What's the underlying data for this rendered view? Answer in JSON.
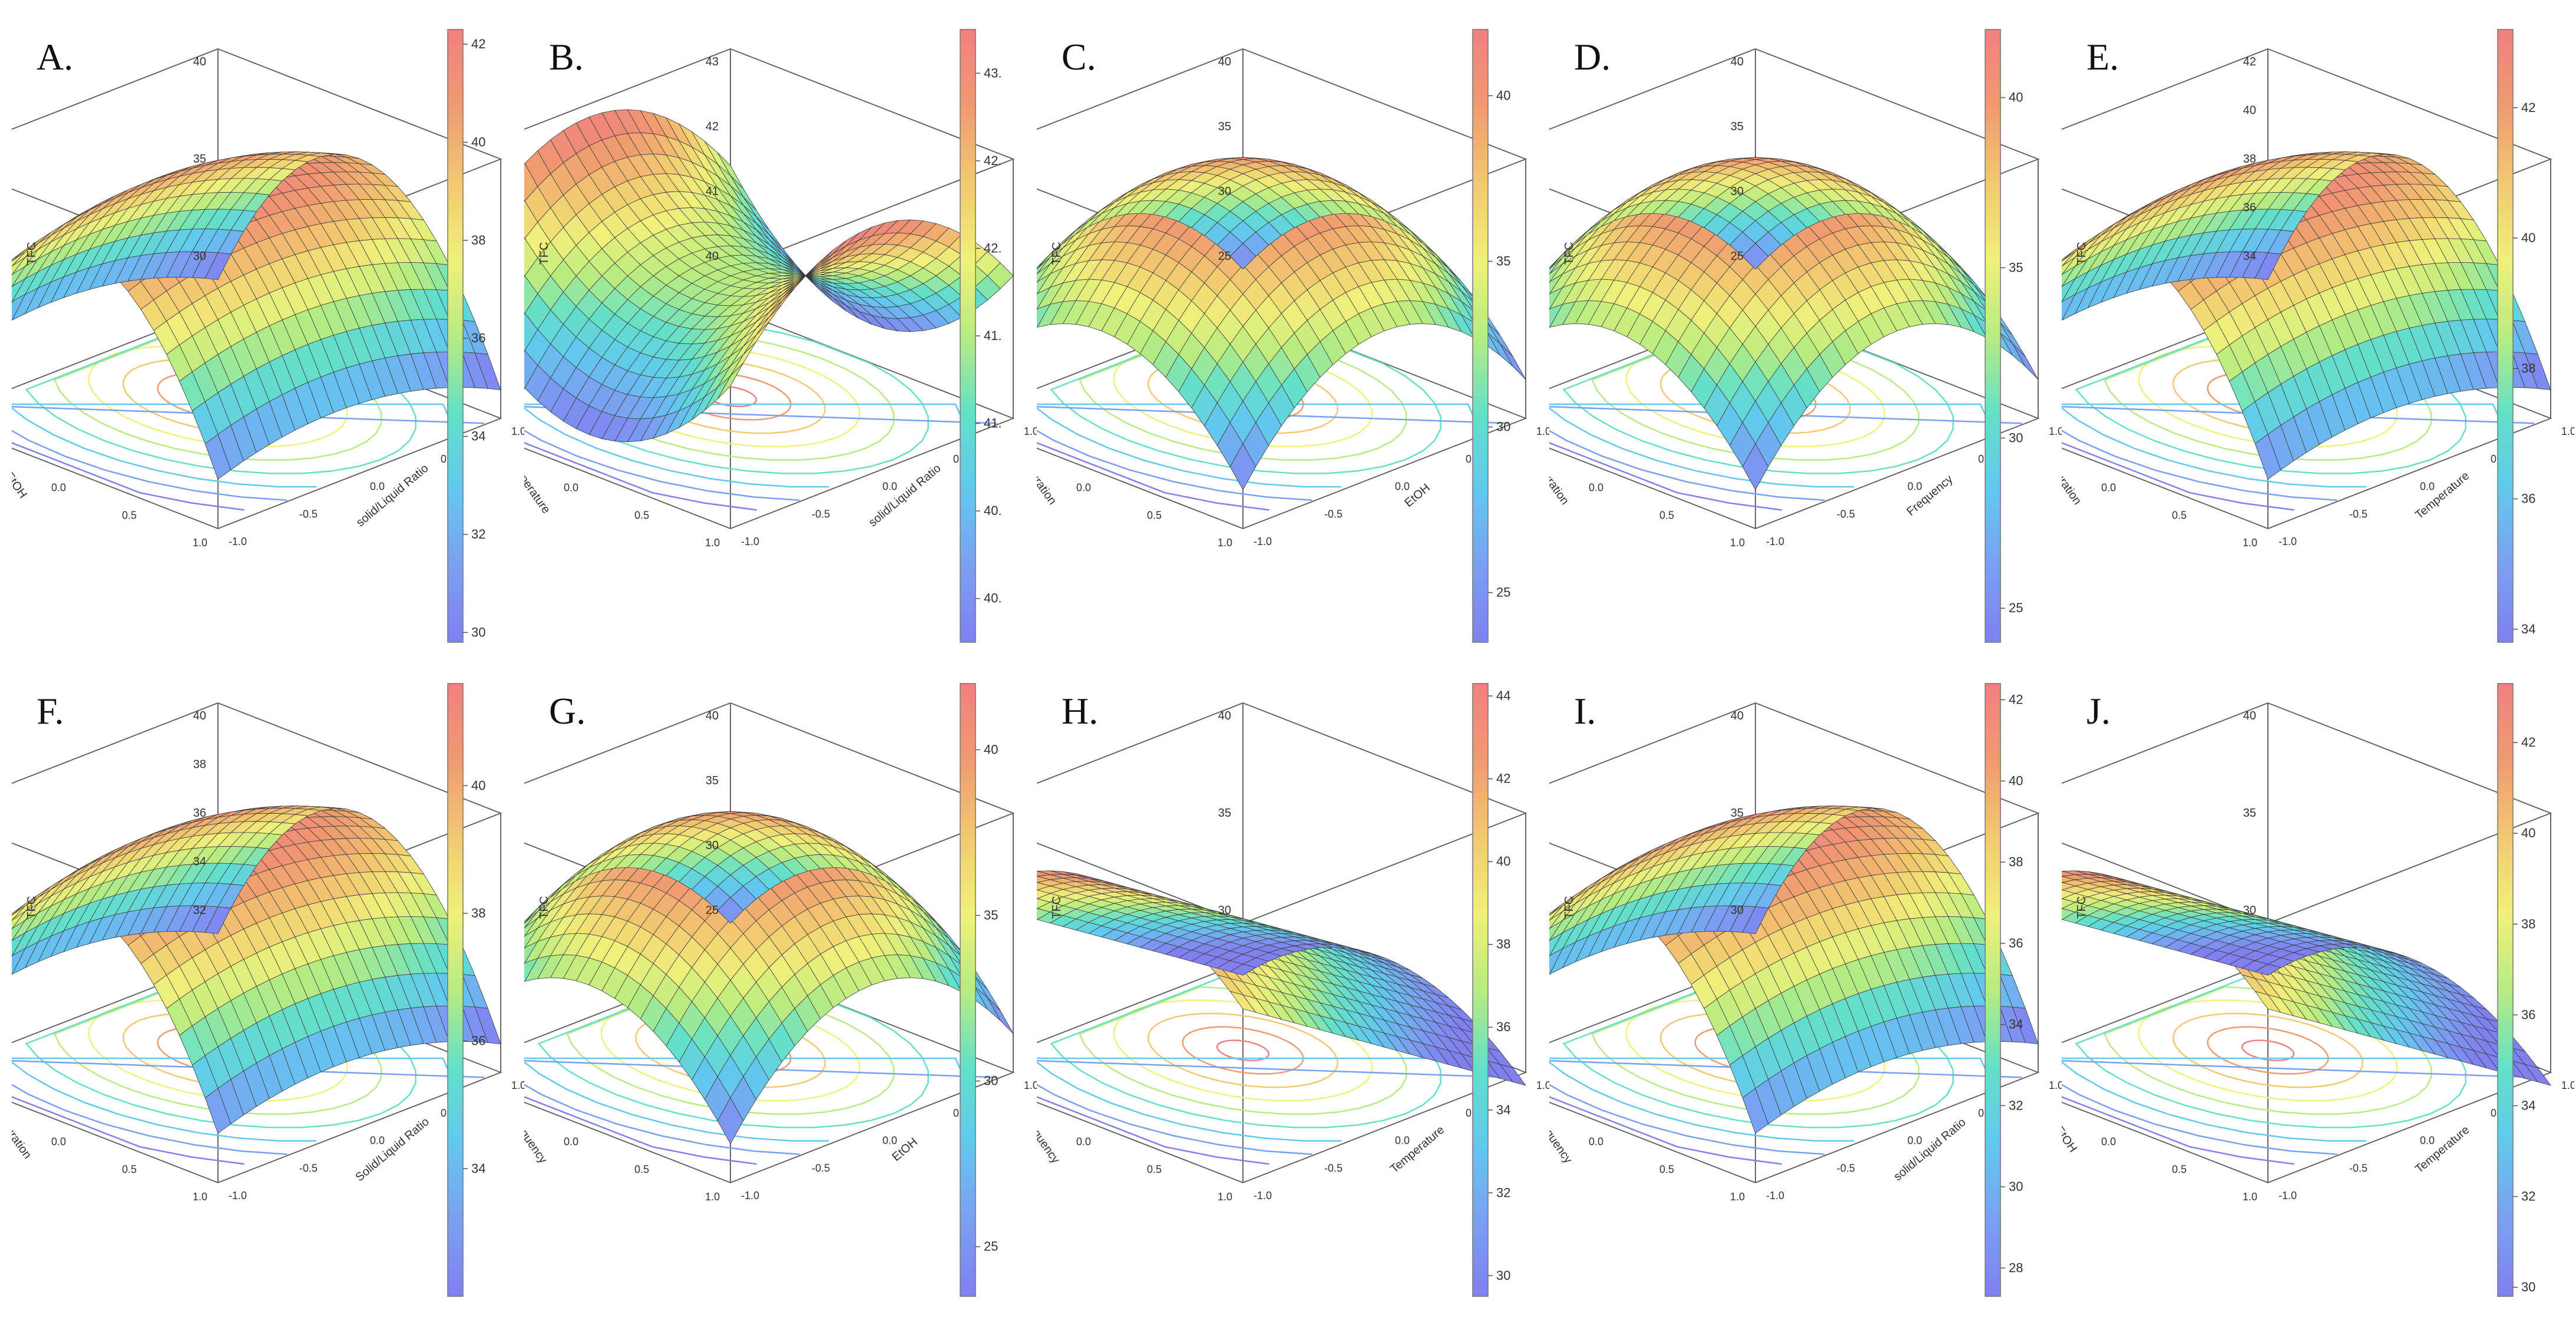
{
  "figure": {
    "colorbar_colors": [
      "#8080f0",
      "#7aa0f2",
      "#62c8ee",
      "#64e0c8",
      "#b8ec80",
      "#f0f07a",
      "#f2c870",
      "#f09a70",
      "#f08080"
    ],
    "panels": [
      {
        "id": "A",
        "letter": "A.",
        "zlabel": "TFC",
        "x1label": "EtOH",
        "x2label": "solid/Liquid Ratio",
        "z_ticks": [
          "30",
          "35",
          "40"
        ],
        "x_ticks": [
          "-1.0",
          "-0.5",
          "0.0",
          "0.5",
          "1.0"
        ],
        "colorbar_ticks": [
          "30",
          "32",
          "34",
          "36",
          "38",
          "40",
          "42"
        ],
        "colorbar_range": [
          29.8,
          42.3
        ],
        "surface": {
          "kind": "ridge",
          "base": 33,
          "amp": 9
        }
      },
      {
        "id": "B",
        "letter": "B.",
        "zlabel": "TFC",
        "x1label": "Temperature",
        "x2label": "solid/Liquid Ratio",
        "z_ticks": [
          "40",
          "41",
          "42",
          "43"
        ],
        "x_ticks": [
          "-1.0",
          "-0.5",
          "0.0",
          "0.5",
          "1.0"
        ],
        "colorbar_ticks": [
          "40.",
          "40.",
          "41.",
          "41.",
          "42.",
          "42.",
          "43."
        ],
        "colorbar_range": [
          39.8,
          43.1
        ],
        "surface": {
          "kind": "saddle",
          "base": 41.5,
          "amp": 1.4
        }
      },
      {
        "id": "C",
        "letter": "C.",
        "zlabel": "TFC",
        "x1label": "Duration",
        "x2label": "EtOH",
        "z_ticks": [
          "25",
          "30",
          "35",
          "40"
        ],
        "x_ticks": [
          "-1.0",
          "-0.5",
          "0.0",
          "0.5",
          "1.0"
        ],
        "colorbar_ticks": [
          "25",
          "30",
          "35",
          "40"
        ],
        "colorbar_range": [
          23.5,
          42
        ],
        "surface": {
          "kind": "dome",
          "base": 24,
          "amp": 18
        }
      },
      {
        "id": "D",
        "letter": "D.",
        "zlabel": "TFC",
        "x1label": "Duration",
        "x2label": "Frequency",
        "z_ticks": [
          "25",
          "30",
          "35",
          "40"
        ],
        "x_ticks": [
          "-1.0",
          "-0.5",
          "0.0",
          "0.5",
          "1.0"
        ],
        "colorbar_ticks": [
          "25",
          "30",
          "35",
          "40"
        ],
        "colorbar_range": [
          24,
          42
        ],
        "surface": {
          "kind": "dome",
          "base": 24,
          "amp": 18
        }
      },
      {
        "id": "E",
        "letter": "E.",
        "zlabel": "TFC",
        "x1label": "Duration",
        "x2label": "Temperature",
        "z_ticks": [
          "34",
          "36",
          "38",
          "40",
          "42"
        ],
        "x_ticks": [
          "-1.0",
          "-0.5",
          "0.0",
          "0.5",
          "1.0"
        ],
        "colorbar_ticks": [
          "34",
          "36",
          "38",
          "40",
          "42"
        ],
        "colorbar_range": [
          33.8,
          43.2
        ],
        "surface": {
          "kind": "ridge",
          "base": 34,
          "amp": 9
        }
      },
      {
        "id": "F",
        "letter": "F.",
        "zlabel": "TFC",
        "x1label": "Duration",
        "x2label": "Solid/Liquid Ratio",
        "z_ticks": [
          "32",
          "34",
          "36",
          "38",
          "40"
        ],
        "x_ticks": [
          "-1.0",
          "-0.5",
          "0.0",
          "0.5",
          "1.0"
        ],
        "colorbar_ticks": [
          "34",
          "36",
          "38",
          "40"
        ],
        "colorbar_range": [
          32,
          41.6
        ],
        "surface": {
          "kind": "ridge",
          "base": 32,
          "amp": 9.5
        }
      },
      {
        "id": "G",
        "letter": "G.",
        "zlabel": "TFC",
        "x1label": "Frequency",
        "x2label": "EtOH",
        "z_ticks": [
          "25",
          "30",
          "35",
          "40"
        ],
        "x_ticks": [
          "-1.0",
          "-0.5",
          "0.0",
          "0.5",
          "1.0"
        ],
        "colorbar_ticks": [
          "25",
          "30",
          "35",
          "40"
        ],
        "colorbar_range": [
          23.5,
          42
        ],
        "surface": {
          "kind": "dome",
          "base": 24,
          "amp": 18
        }
      },
      {
        "id": "H",
        "letter": "H.",
        "zlabel": "TFC",
        "x1label": "Frequency",
        "x2label": "Temperature",
        "z_ticks": [
          "30",
          "35",
          "40"
        ],
        "x_ticks": [
          "-1.0",
          "-0.5",
          "0.0",
          "0.5",
          "1.0"
        ],
        "colorbar_ticks": [
          "30",
          "32",
          "34",
          "36",
          "38",
          "40",
          "42",
          "44"
        ],
        "colorbar_range": [
          29.5,
          44.3
        ],
        "surface": {
          "kind": "slope",
          "base": 30,
          "amp": 14
        }
      },
      {
        "id": "I",
        "letter": "I.",
        "zlabel": "TFC",
        "x1label": "Frequency",
        "x2label": "solid/Liquid Ratio",
        "z_ticks": [
          "30",
          "35",
          "40"
        ],
        "x_ticks": [
          "-1.0",
          "-0.5",
          "0.0",
          "0.5",
          "1.0"
        ],
        "colorbar_ticks": [
          "28",
          "30",
          "32",
          "34",
          "36",
          "38",
          "40",
          "42"
        ],
        "colorbar_range": [
          27.3,
          42.4
        ],
        "surface": {
          "kind": "ridge",
          "base": 28,
          "amp": 14
        }
      },
      {
        "id": "J",
        "letter": "J.",
        "zlabel": "TFC",
        "x1label": "EtOH",
        "x2label": "Temperature",
        "z_ticks": [
          "30",
          "35",
          "40"
        ],
        "x_ticks": [
          "-1.0",
          "-0.5",
          "0.0",
          "0.5",
          "1.0"
        ],
        "colorbar_ticks": [
          "30",
          "32",
          "34",
          "36",
          "38",
          "40",
          "42"
        ],
        "colorbar_range": [
          29.8,
          43.3
        ],
        "surface": {
          "kind": "slope",
          "base": 30,
          "amp": 13
        }
      }
    ]
  }
}
